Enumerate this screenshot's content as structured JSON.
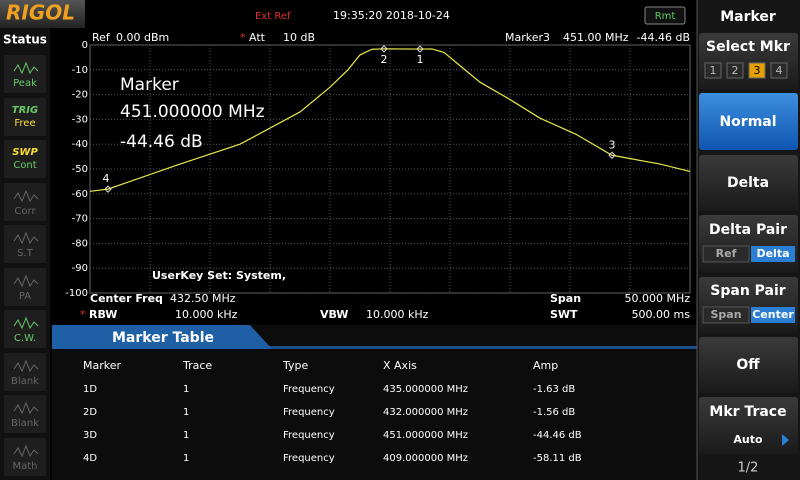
{
  "top_bar": {
    "logo": "RIGOL",
    "ref_source": "Ext Ref",
    "datetime": "19:35:20 2018-10-24",
    "remote": "Rmt"
  },
  "status": {
    "title": "Status",
    "items": [
      {
        "label": "Peak"
      },
      {
        "heading": "TRIG",
        "label": "Free"
      },
      {
        "heading": "SWP",
        "label": "Cont"
      },
      {
        "label": "Corr"
      },
      {
        "label": "S.T"
      },
      {
        "label": "PA"
      },
      {
        "label": "C.W."
      },
      {
        "label": "Blank"
      },
      {
        "label": "Blank"
      },
      {
        "label": "Math"
      }
    ]
  },
  "plot_header": {
    "ref_label": "Ref",
    "ref_value": "0.00 dBm",
    "att_flag": "*",
    "att_label": "Att",
    "att_value": "10 dB",
    "marker_label": "Marker3",
    "marker_freq": "451.00 MHz",
    "marker_amp": "-44.46 dB"
  },
  "plot": {
    "xlim": [
      407.5,
      457.5
    ],
    "ylim": [
      -100,
      0
    ],
    "yticks": [
      0,
      -10,
      -20,
      -30,
      -40,
      -50,
      -60,
      -70,
      -80,
      -90,
      -100
    ],
    "trace": {
      "x": [
        407.5,
        409,
        415,
        420,
        425,
        427.5,
        429,
        430,
        431,
        432,
        435,
        436,
        437,
        438,
        440,
        442.5,
        445,
        448,
        451,
        455,
        457.5
      ],
      "values": [
        -59,
        -58.11,
        -48,
        -40,
        -27,
        -17,
        -10,
        -4,
        -1.7,
        -1.56,
        -1.63,
        -1.6,
        -3,
        -7,
        -15,
        -22,
        -29.5,
        -36,
        -44.46,
        -48,
        -51
      ]
    },
    "markers": [
      {
        "label": "1",
        "x": 435,
        "y": -1.63
      },
      {
        "label": "2",
        "x": 432,
        "y": -1.56
      },
      {
        "label": "3",
        "x": 451,
        "y": -44.46
      },
      {
        "label": "4",
        "x": 409,
        "y": -58.11
      }
    ]
  },
  "overlay": {
    "title": "Marker",
    "freq": "451.000000 MHz",
    "amp": "-44.46 dB",
    "userkey": "UserKey Set:  System,"
  },
  "params": {
    "center_label": "Center Freq",
    "center_value": "432.50 MHz",
    "span_label": "Span",
    "span_value": "50.000 MHz",
    "rbw_flag": "*",
    "rbw_label": "RBW",
    "rbw_value": "10.000 kHz",
    "vbw_label": "VBW",
    "vbw_value": "10.000 kHz",
    "swt_label": "SWT",
    "swt_value": "500.00 ms"
  },
  "marker_table": {
    "title": "Marker Table",
    "columns": [
      "Marker",
      "Trace",
      "Type",
      "X Axis",
      "Amp"
    ],
    "rows": [
      [
        "1D",
        "1",
        "Frequency",
        "435.000000 MHz",
        "-1.63 dB"
      ],
      [
        "2D",
        "1",
        "Frequency",
        "432.000000 MHz",
        "-1.56 dB"
      ],
      [
        "3D",
        "1",
        "Frequency",
        "451.000000 MHz",
        "-44.46 dB"
      ],
      [
        "4D",
        "1",
        "Frequency",
        "409.000000 MHz",
        "-58.11 dB"
      ]
    ]
  },
  "menu": {
    "title": "Marker",
    "select_mkr": {
      "label": "Select Mkr",
      "options": [
        "1",
        "2",
        "3",
        "4"
      ]
    },
    "normal": "Normal",
    "delta": "Delta",
    "delta_pair": {
      "label": "Delta Pair",
      "options": [
        "Ref",
        "Delta"
      ]
    },
    "span_pair": {
      "label": "Span Pair",
      "options": [
        "Span",
        "Center"
      ]
    },
    "off": "Off",
    "mkr_trace": {
      "label": "Mkr Trace",
      "value": "Auto"
    },
    "page": "1/2"
  }
}
